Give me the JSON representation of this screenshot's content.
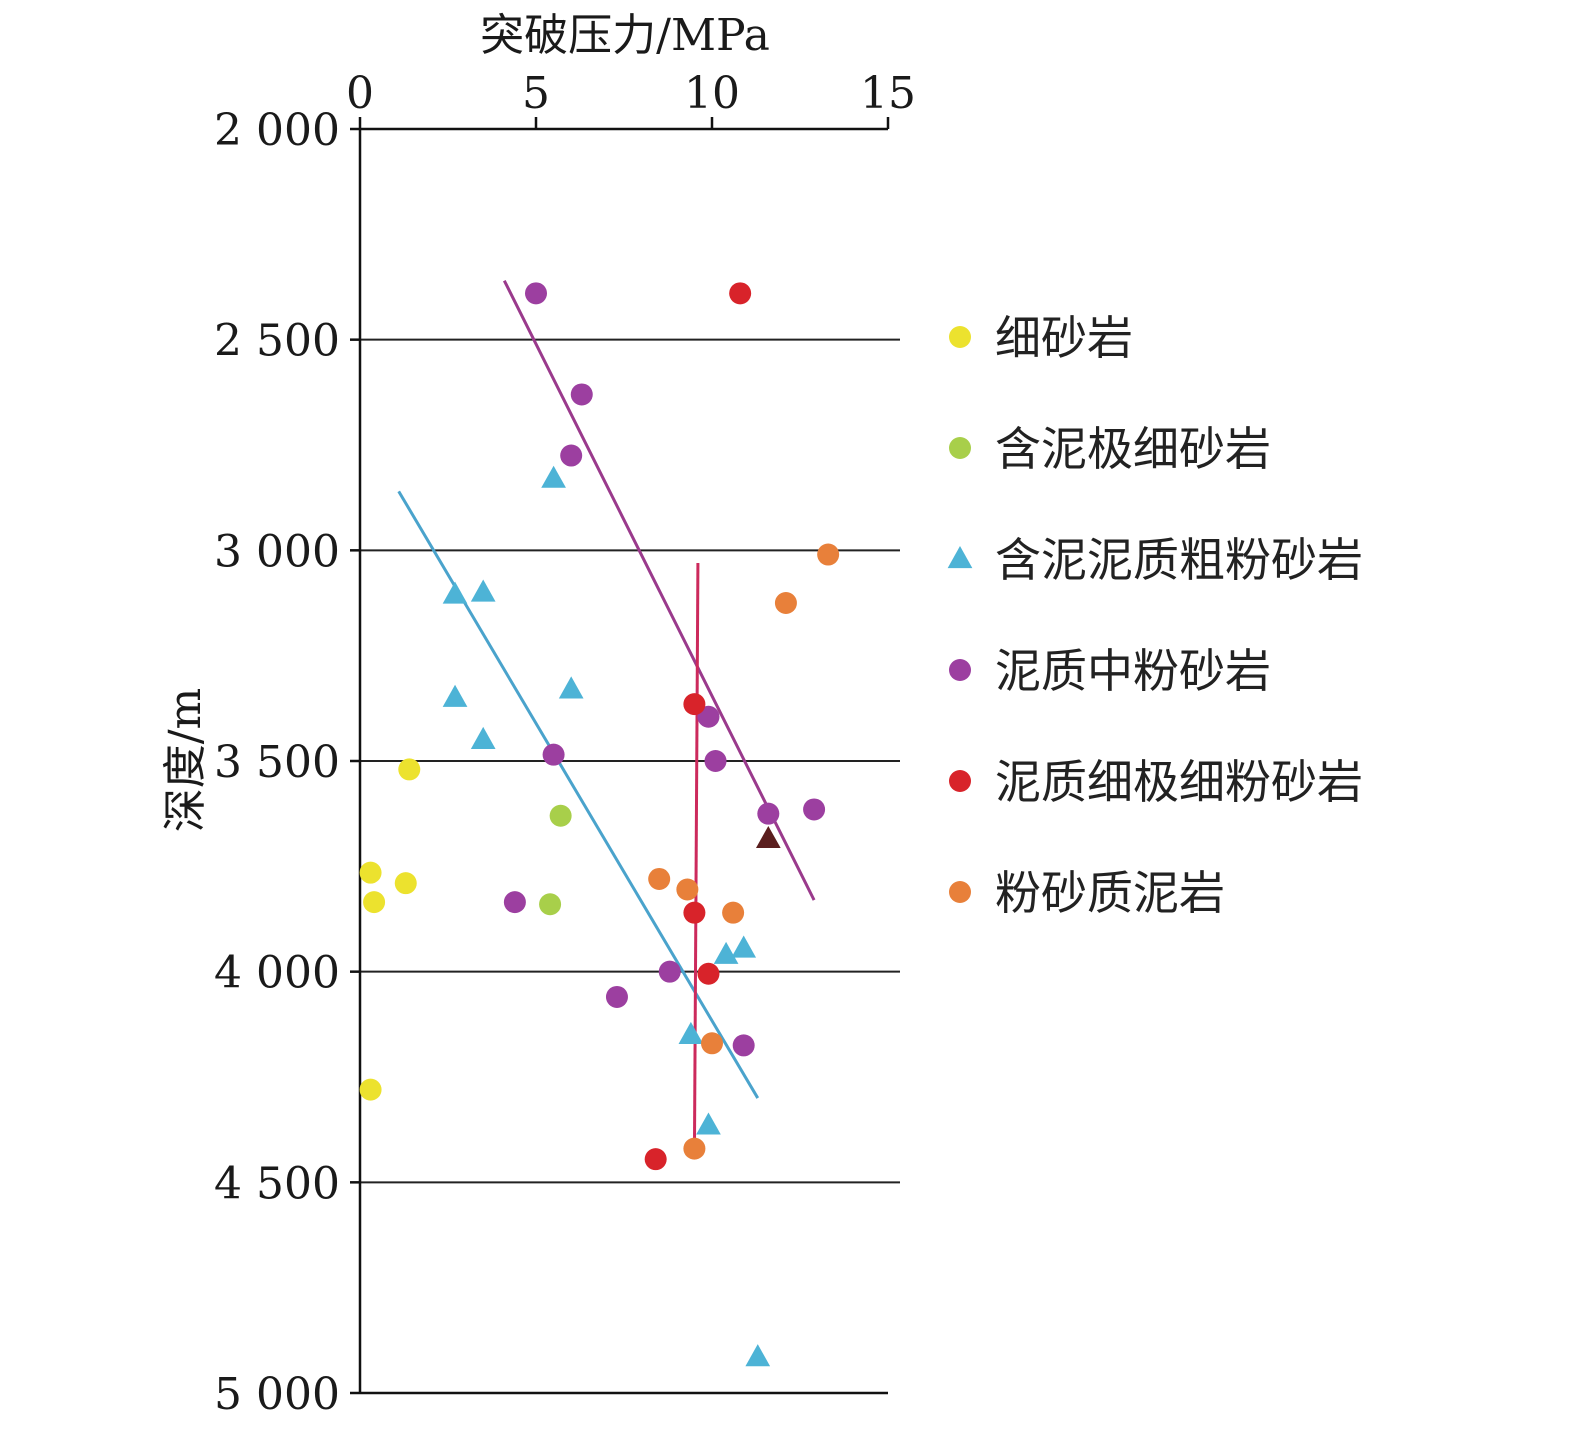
{
  "chart_data": {
    "type": "scatter",
    "title": "",
    "xlabel": "突破压力/MPa",
    "ylabel": "深度/m",
    "xlim": [
      0,
      15
    ],
    "ylim": [
      2000,
      5000
    ],
    "y_inverted": true,
    "x_axis_position": "top",
    "x_ticks": [
      0,
      5,
      10,
      15
    ],
    "x_tick_labels": [
      "0",
      "5",
      "10",
      "15"
    ],
    "y_ticks": [
      2000,
      2500,
      3000,
      3500,
      4000,
      4500,
      5000
    ],
    "y_tick_labels": [
      "2 000",
      "2 500",
      "3 000",
      "3 500",
      "4 000",
      "4 500",
      "5 000"
    ],
    "grid": "horizontal",
    "legend_position": "right",
    "series": [
      {
        "name": "细砂岩",
        "marker": "circle",
        "color": "#ece22e",
        "points": [
          [
            1.4,
            3520
          ],
          [
            0.3,
            3765
          ],
          [
            1.3,
            3790
          ],
          [
            0.4,
            3835
          ],
          [
            0.3,
            4280
          ]
        ]
      },
      {
        "name": "含泥极细砂岩",
        "marker": "circle",
        "color": "#a8cf4a",
        "points": [
          [
            5.7,
            3630
          ],
          [
            5.4,
            3840
          ]
        ]
      },
      {
        "name": "含泥泥质粗粉砂岩",
        "marker": "triangle",
        "color": "#4db3d6",
        "points": [
          [
            5.5,
            2830
          ],
          [
            2.7,
            3105
          ],
          [
            3.5,
            3100
          ],
          [
            2.7,
            3350
          ],
          [
            6.0,
            3330
          ],
          [
            3.5,
            3450
          ],
          [
            10.4,
            3960
          ],
          [
            10.9,
            3945
          ],
          [
            9.4,
            4150
          ],
          [
            9.9,
            4365
          ],
          [
            11.3,
            4915
          ]
        ]
      },
      {
        "name": "泥质中粉砂岩",
        "marker": "circle",
        "color": "#9c3fa0",
        "points": [
          [
            5.0,
            2390
          ],
          [
            6.3,
            2630
          ],
          [
            6.0,
            2775
          ],
          [
            9.9,
            3395
          ],
          [
            5.5,
            3485
          ],
          [
            10.1,
            3500
          ],
          [
            11.6,
            3625
          ],
          [
            12.9,
            3615
          ],
          [
            4.4,
            3835
          ],
          [
            8.8,
            4000
          ],
          [
            7.3,
            4060
          ],
          [
            10.9,
            4175
          ]
        ]
      },
      {
        "name": "泥质细极细粉砂岩",
        "marker": "circle",
        "color": "#d8232a",
        "points": [
          [
            10.8,
            2390
          ],
          [
            9.5,
            3365
          ],
          [
            9.5,
            3860
          ],
          [
            9.9,
            4005
          ],
          [
            8.4,
            4445
          ]
        ]
      },
      {
        "name": "粉砂质泥岩",
        "marker": "circle",
        "color": "#e8803a",
        "points": [
          [
            13.3,
            3010
          ],
          [
            12.1,
            3125
          ],
          [
            8.5,
            3780
          ],
          [
            9.3,
            3805
          ],
          [
            10.6,
            3860
          ],
          [
            10.0,
            4170
          ],
          [
            9.5,
            4420
          ]
        ]
      }
    ],
    "extra_points": [
      {
        "marker": "triangle",
        "color": "#5a1e1e",
        "x": 11.6,
        "y": 3685
      }
    ],
    "trend_lines": [
      {
        "color": "#9a3a8c",
        "from": [
          4.1,
          2360
        ],
        "to": [
          12.9,
          3830
        ]
      },
      {
        "color": "#4aa3cc",
        "from": [
          1.1,
          2860
        ],
        "to": [
          11.3,
          4300
        ]
      },
      {
        "color": "#cc2a5c",
        "from": [
          9.6,
          3030
        ],
        "to": [
          9.5,
          4440
        ]
      }
    ]
  }
}
